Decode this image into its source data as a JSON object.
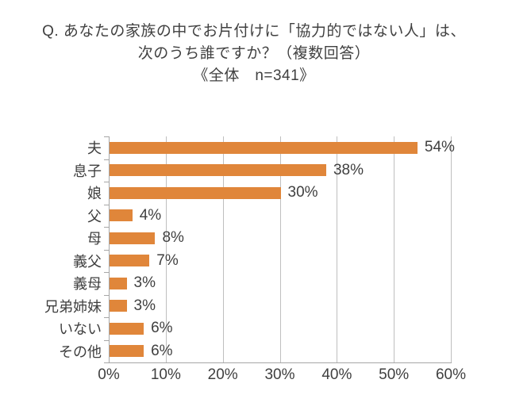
{
  "title": {
    "line1": "Q. あなたの家族の中でお片付けに「協力的ではない人」は、",
    "line2": "次のうち誰ですか？（複数回答）",
    "line3": "《全体　n=341》"
  },
  "chart_data": {
    "type": "bar",
    "orientation": "horizontal",
    "title": "Q. あなたの家族の中でお片付けに「協力的ではない人」は、次のうち誰ですか？（複数回答）《全体　n=341》",
    "categories": [
      "夫",
      "息子",
      "娘",
      "父",
      "母",
      "義父",
      "義母",
      "兄弟姉妹",
      "いない",
      "その他"
    ],
    "values": [
      54,
      38,
      30,
      4,
      8,
      7,
      3,
      3,
      6,
      6
    ],
    "value_labels": [
      "54%",
      "38%",
      "30%",
      "4%",
      "8%",
      "7%",
      "3%",
      "3%",
      "6%",
      "6%"
    ],
    "x_ticks": [
      0,
      10,
      20,
      30,
      40,
      50,
      60
    ],
    "x_tick_labels": [
      "0%",
      "10%",
      "20%",
      "30%",
      "40%",
      "50%",
      "60%"
    ],
    "xlim": [
      0,
      60
    ],
    "grid": "vertical gridlines at every 10%",
    "legend": "none",
    "bar_color": "#E0863A",
    "grid_color": "#BFBFBF",
    "axis_color": "#A6A6A6",
    "text_color": "#3F3F3F"
  }
}
